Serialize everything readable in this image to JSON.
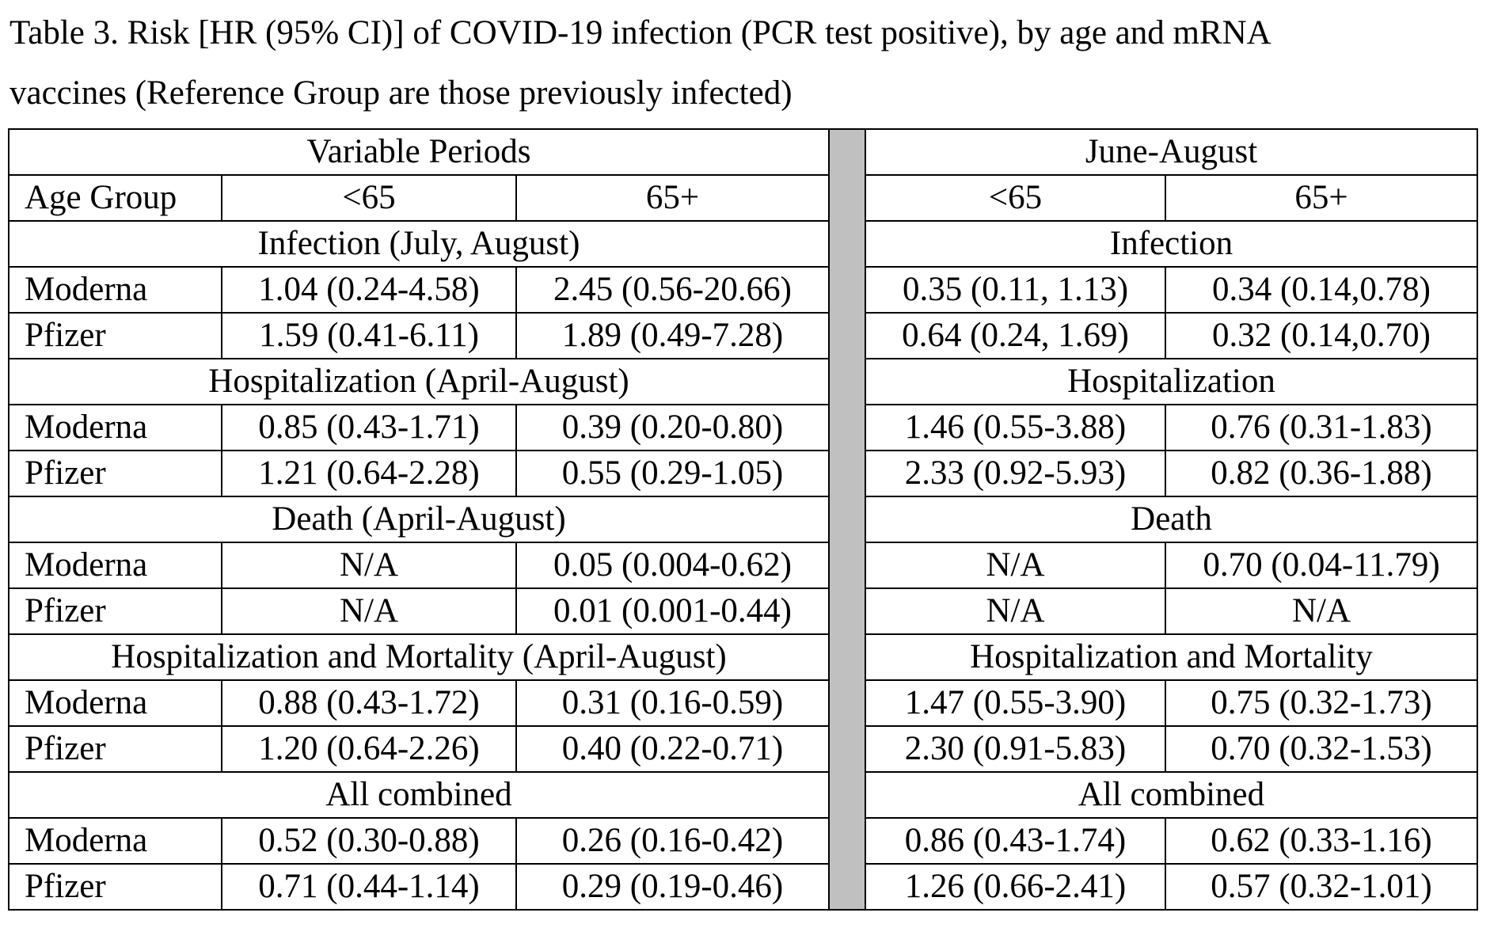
{
  "caption": {
    "line1": "Table 3. Risk [HR (95% CI)] of COVID-19 infection (PCR test positive), by age and mRNA",
    "line2": "vaccines (Reference Group are those previously infected)"
  },
  "table": {
    "periods": {
      "left": "Variable Periods",
      "right": "June-August"
    },
    "age_header": {
      "label": "Age Group",
      "under65": "<65",
      "over65": "65+"
    },
    "sections": [
      {
        "left_title": "Infection (July, August)",
        "right_title": "Infection",
        "rows": [
          {
            "vaccine": "Moderna",
            "values": [
              "1.04 (0.24-4.58)",
              "2.45 (0.56-20.66)",
              "0.35 (0.11, 1.13)",
              "0.34 (0.14,0.78)"
            ]
          },
          {
            "vaccine": "Pfizer",
            "values": [
              "1.59 (0.41-6.11)",
              "1.89 (0.49-7.28)",
              "0.64 (0.24, 1.69)",
              "0.32 (0.14,0.70)"
            ]
          }
        ]
      },
      {
        "left_title": "Hospitalization (April-August)",
        "right_title": "Hospitalization",
        "rows": [
          {
            "vaccine": "Moderna",
            "values": [
              "0.85 (0.43-1.71)",
              "0.39 (0.20-0.80)",
              "1.46 (0.55-3.88)",
              "0.76 (0.31-1.83)"
            ]
          },
          {
            "vaccine": "Pfizer",
            "values": [
              "1.21 (0.64-2.28)",
              "0.55 (0.29-1.05)",
              "2.33 (0.92-5.93)",
              "0.82 (0.36-1.88)"
            ]
          }
        ]
      },
      {
        "left_title": "Death (April-August)",
        "right_title": "Death",
        "rows": [
          {
            "vaccine": "Moderna",
            "values": [
              "N/A",
              "0.05 (0.004-0.62)",
              "N/A",
              "0.70 (0.04-11.79)"
            ]
          },
          {
            "vaccine": "Pfizer",
            "values": [
              "N/A",
              "0.01 (0.001-0.44)",
              "N/A",
              "N/A"
            ]
          }
        ]
      },
      {
        "left_title": "Hospitalization and Mortality (April-August)",
        "right_title": "Hospitalization and Mortality",
        "rows": [
          {
            "vaccine": "Moderna",
            "values": [
              "0.88 (0.43-1.72)",
              "0.31 (0.16-0.59)",
              "1.47 (0.55-3.90)",
              "0.75 (0.32-1.73)"
            ]
          },
          {
            "vaccine": "Pfizer",
            "values": [
              "1.20 (0.64-2.26)",
              "0.40 (0.22-0.71)",
              "2.30 (0.91-5.83)",
              "0.70 (0.32-1.53)"
            ]
          }
        ]
      },
      {
        "left_title": "All combined",
        "right_title": "All combined",
        "rows": [
          {
            "vaccine": "Moderna",
            "values": [
              "0.52 (0.30-0.88)",
              "0.26 (0.16-0.42)",
              "0.86 (0.43-1.74)",
              "0.62 (0.33-1.16)"
            ]
          },
          {
            "vaccine": "Pfizer",
            "values": [
              "0.71 (0.44-1.14)",
              "0.29 (0.19-0.46)",
              "1.26 (0.66-2.41)",
              "0.57 (0.32-1.01)"
            ]
          }
        ]
      }
    ]
  }
}
